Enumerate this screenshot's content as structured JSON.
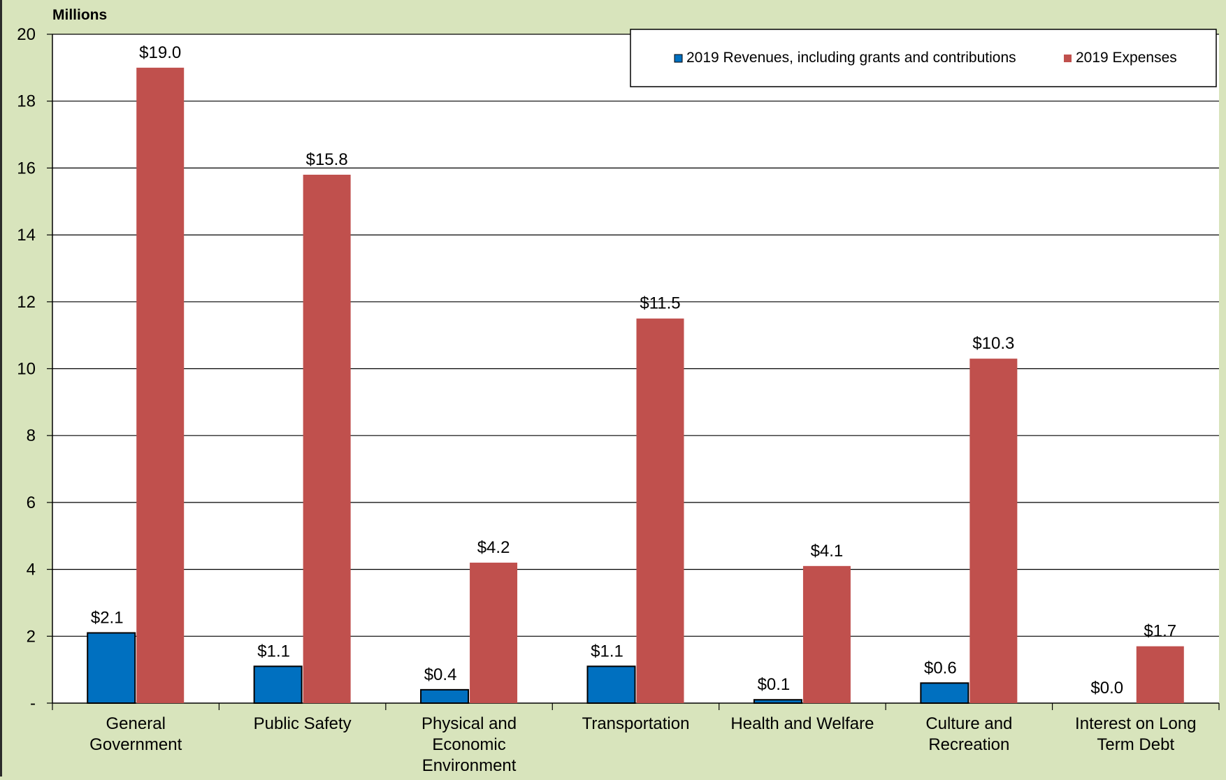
{
  "chart_data": {
    "type": "bar",
    "unit_label": "Millions",
    "categories": [
      [
        "General",
        "Government"
      ],
      [
        "Public Safety"
      ],
      [
        "Physical and",
        "Economic",
        "Environment"
      ],
      [
        "Transportation"
      ],
      [
        "Health and Welfare"
      ],
      [
        "Culture and",
        "Recreation"
      ],
      [
        "Interest on Long",
        "Term Debt"
      ]
    ],
    "series": [
      {
        "name": "2019 Revenues, including grants and contributions",
        "color": "#0070c0",
        "values": [
          2.1,
          1.1,
          0.4,
          1.1,
          0.1,
          0.6,
          0.0
        ],
        "labels": [
          "$2.1",
          "$1.1",
          "$0.4",
          "$1.1",
          "$0.1",
          "$0.6",
          "$0.0"
        ]
      },
      {
        "name": "2019 Expenses",
        "color": "#c0504d",
        "values": [
          19.0,
          15.8,
          4.2,
          11.5,
          4.1,
          10.3,
          1.7
        ],
        "labels": [
          "$19.0",
          "$15.8",
          "$4.2",
          "$11.5",
          "$4.1",
          "$10.3",
          "$1.7"
        ]
      }
    ],
    "ylim": [
      0,
      20
    ],
    "yticks": [
      "-",
      "2",
      "4",
      "6",
      "8",
      "10",
      "12",
      "14",
      "16",
      "18",
      "20"
    ],
    "grid": true,
    "legend_position": "top-right",
    "plot_background": "#ffffff",
    "page_background": "#d8e4bc"
  }
}
